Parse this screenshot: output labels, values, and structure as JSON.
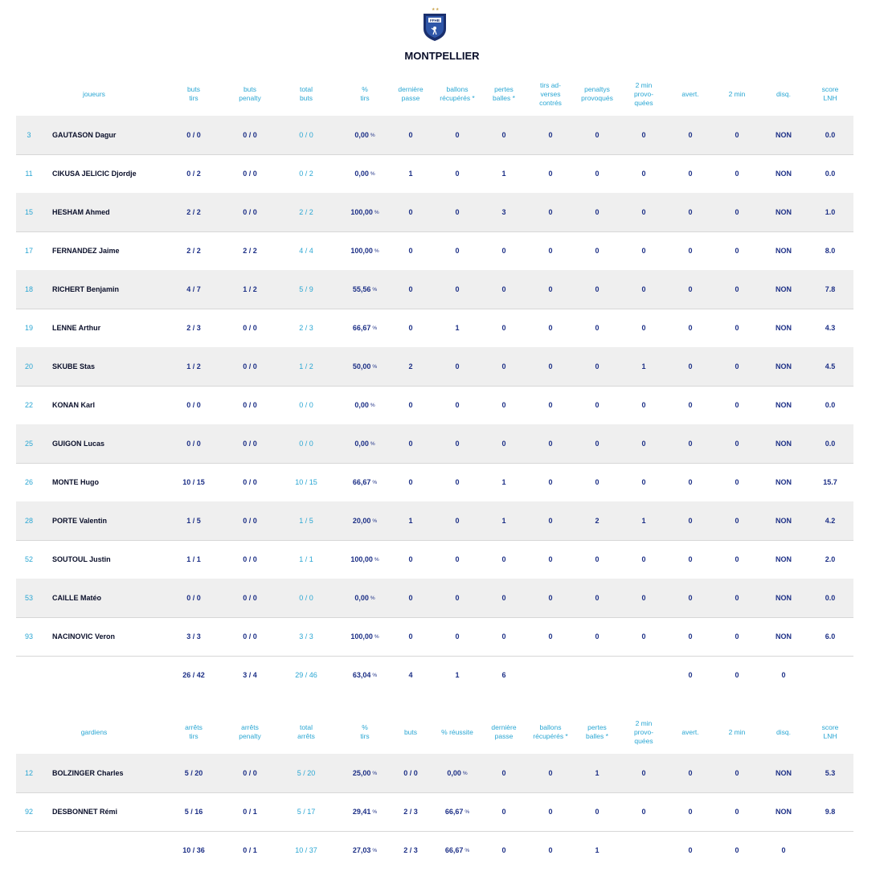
{
  "team": {
    "name": "MONTPELLIER",
    "logo_text": "FFHB"
  },
  "players": {
    "headers": [
      "joueurs",
      "buts\ntirs",
      "buts\npenalty",
      "total\nbuts",
      "%\ntirs",
      "dernière\npasse",
      "ballons\nrécupérés *",
      "pertes\nballes *",
      "tirs ad-\nverses\ncontrés",
      "penaltys\nprovoqués",
      "2 min\nprovo-\nquées",
      "avert.",
      "2 min",
      "disq.",
      "score\nLNH"
    ],
    "rows": [
      {
        "num": "3",
        "name": "GAUTASON Dagur",
        "c": [
          "0 / 0",
          "0 / 0",
          "0 / 0",
          "0,00",
          "0",
          "0",
          "0",
          "0",
          "0",
          "0",
          "0",
          "0",
          "NON",
          "0.0"
        ]
      },
      {
        "num": "11",
        "name": "CIKUSA JELICIC Djordje",
        "c": [
          "0 / 2",
          "0 / 0",
          "0 / 2",
          "0,00",
          "1",
          "0",
          "1",
          "0",
          "0",
          "0",
          "0",
          "0",
          "NON",
          "0.0"
        ]
      },
      {
        "num": "15",
        "name": "HESHAM Ahmed",
        "c": [
          "2 / 2",
          "0 / 0",
          "2 / 2",
          "100,00",
          "0",
          "0",
          "3",
          "0",
          "0",
          "0",
          "0",
          "0",
          "NON",
          "1.0"
        ]
      },
      {
        "num": "17",
        "name": "FERNANDEZ Jaime",
        "c": [
          "2 / 2",
          "2 / 2",
          "4 / 4",
          "100,00",
          "0",
          "0",
          "0",
          "0",
          "0",
          "0",
          "0",
          "0",
          "NON",
          "8.0"
        ]
      },
      {
        "num": "18",
        "name": "RICHERT Benjamin",
        "c": [
          "4 / 7",
          "1 / 2",
          "5 / 9",
          "55,56",
          "0",
          "0",
          "0",
          "0",
          "0",
          "0",
          "0",
          "0",
          "NON",
          "7.8"
        ]
      },
      {
        "num": "19",
        "name": "LENNE Arthur",
        "c": [
          "2 / 3",
          "0 / 0",
          "2 / 3",
          "66,67",
          "0",
          "1",
          "0",
          "0",
          "0",
          "0",
          "0",
          "0",
          "NON",
          "4.3"
        ]
      },
      {
        "num": "20",
        "name": "SKUBE Stas",
        "c": [
          "1 / 2",
          "0 / 0",
          "1 / 2",
          "50,00",
          "2",
          "0",
          "0",
          "0",
          "0",
          "1",
          "0",
          "0",
          "NON",
          "4.5"
        ]
      },
      {
        "num": "22",
        "name": "KONAN Karl",
        "c": [
          "0 / 0",
          "0 / 0",
          "0 / 0",
          "0,00",
          "0",
          "0",
          "0",
          "0",
          "0",
          "0",
          "0",
          "0",
          "NON",
          "0.0"
        ]
      },
      {
        "num": "25",
        "name": "GUIGON Lucas",
        "c": [
          "0 / 0",
          "0 / 0",
          "0 / 0",
          "0,00",
          "0",
          "0",
          "0",
          "0",
          "0",
          "0",
          "0",
          "0",
          "NON",
          "0.0"
        ]
      },
      {
        "num": "26",
        "name": "MONTE Hugo",
        "c": [
          "10 / 15",
          "0 / 0",
          "10 / 15",
          "66,67",
          "0",
          "0",
          "1",
          "0",
          "0",
          "0",
          "0",
          "0",
          "NON",
          "15.7"
        ]
      },
      {
        "num": "28",
        "name": "PORTE Valentin",
        "c": [
          "1 / 5",
          "0 / 0",
          "1 / 5",
          "20,00",
          "1",
          "0",
          "1",
          "0",
          "2",
          "1",
          "0",
          "0",
          "NON",
          "4.2"
        ]
      },
      {
        "num": "52",
        "name": "SOUTOUL Justin",
        "c": [
          "1 / 1",
          "0 / 0",
          "1 / 1",
          "100,00",
          "0",
          "0",
          "0",
          "0",
          "0",
          "0",
          "0",
          "0",
          "NON",
          "2.0"
        ]
      },
      {
        "num": "53",
        "name": "CAILLE Matéo",
        "c": [
          "0 / 0",
          "0 / 0",
          "0 / 0",
          "0,00",
          "0",
          "0",
          "0",
          "0",
          "0",
          "0",
          "0",
          "0",
          "NON",
          "0.0"
        ]
      },
      {
        "num": "93",
        "name": "NACINOVIC Veron",
        "c": [
          "3 / 3",
          "0 / 0",
          "3 / 3",
          "100,00",
          "0",
          "0",
          "0",
          "0",
          "0",
          "0",
          "0",
          "0",
          "NON",
          "6.0"
        ]
      }
    ],
    "total": {
      "num": "",
      "name": "",
      "c": [
        "26 / 42",
        "3 / 4",
        "29 / 46",
        "63,04",
        "4",
        "1",
        "6",
        "",
        "",
        "",
        "0",
        "0",
        "0",
        ""
      ]
    }
  },
  "goalkeepers": {
    "headers": [
      "gardiens",
      "arrêts\ntirs",
      "arrêts\npenalty",
      "total\narrêts",
      "%\ntirs",
      "buts",
      "% réussite",
      "dernière\npasse",
      "ballons\nrécupérés *",
      "pertes\nballes *",
      "2 min\nprovo-\nquées",
      "avert.",
      "2 min",
      "disq.",
      "score\nLNH"
    ],
    "rows": [
      {
        "num": "12",
        "name": "BOLZINGER Charles",
        "c": [
          "5 / 20",
          "0 / 0",
          "5 / 20",
          "25,00",
          "0 / 0",
          "0,00",
          "0",
          "0",
          "1",
          "0",
          "0",
          "0",
          "NON",
          "5.3"
        ]
      },
      {
        "num": "92",
        "name": "DESBONNET Rémi",
        "c": [
          "5 / 16",
          "0 / 1",
          "5 / 17",
          "29,41",
          "2 / 3",
          "66,67",
          "0",
          "0",
          "0",
          "0",
          "0",
          "0",
          "NON",
          "9.8"
        ]
      }
    ],
    "total": {
      "num": "",
      "name": "",
      "c": [
        "10 / 36",
        "0 / 1",
        "10 / 37",
        "27,03",
        "2 / 3",
        "66,67",
        "0",
        "0",
        "1",
        "",
        "0",
        "0",
        "0",
        ""
      ]
    }
  },
  "labels": {
    "percent": "%"
  }
}
